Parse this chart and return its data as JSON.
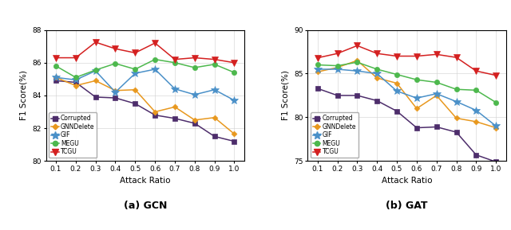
{
  "x": [
    0.1,
    0.2,
    0.3,
    0.4,
    0.5,
    0.6,
    0.7,
    0.8,
    0.9,
    1.0
  ],
  "gcn": {
    "Corrupted": [
      84.9,
      84.8,
      83.9,
      83.85,
      83.5,
      82.8,
      82.6,
      82.3,
      81.5,
      81.2
    ],
    "GNNDelete": [
      85.1,
      84.6,
      84.9,
      84.3,
      84.35,
      83.0,
      83.3,
      82.5,
      82.65,
      81.65
    ],
    "GIF": [
      85.1,
      84.95,
      85.5,
      84.2,
      85.35,
      85.6,
      84.4,
      84.05,
      84.35,
      83.7
    ],
    "MEGU": [
      85.8,
      85.1,
      85.55,
      85.95,
      85.6,
      86.2,
      86.0,
      85.7,
      85.9,
      85.4
    ],
    "TCGU": [
      86.3,
      86.3,
      87.25,
      86.85,
      86.6,
      87.2,
      86.2,
      86.3,
      86.2,
      86.0
    ]
  },
  "gat": {
    "Corrupted": [
      83.3,
      82.5,
      82.5,
      81.9,
      80.7,
      78.8,
      78.9,
      78.3,
      75.7,
      74.9
    ],
    "GNNDelete": [
      85.2,
      85.7,
      86.5,
      84.5,
      83.9,
      81.0,
      82.5,
      79.9,
      79.5,
      78.8
    ],
    "GIF": [
      85.5,
      85.5,
      85.3,
      85.0,
      83.0,
      82.2,
      82.7,
      81.8,
      80.8,
      79.0
    ],
    "MEGU": [
      86.0,
      85.9,
      86.3,
      85.5,
      84.9,
      84.3,
      84.0,
      83.2,
      83.1,
      81.7
    ],
    "TCGU": [
      86.8,
      87.3,
      88.2,
      87.3,
      87.0,
      87.0,
      87.2,
      86.85,
      85.3,
      84.8
    ]
  },
  "colors": {
    "Corrupted": "#4d2d6b",
    "GNNDelete": "#e8981e",
    "GIF": "#4a90c8",
    "MEGU": "#4db84d",
    "TCGU": "#d42020"
  },
  "markers": {
    "Corrupted": "s",
    "GNNDelete": "D",
    "GIF": "*",
    "MEGU": "o",
    "TCGU": "v"
  },
  "marker_sizes": {
    "Corrupted": 4,
    "GNNDelete": 3.5,
    "GIF": 7,
    "MEGU": 4.5,
    "TCGU": 5.5
  },
  "gcn_ylim": [
    80,
    88
  ],
  "gat_ylim": [
    75,
    90
  ],
  "gcn_yticks": [
    80,
    82,
    84,
    86,
    88
  ],
  "gat_yticks": [
    75,
    80,
    85,
    90
  ],
  "xlabel": "Attack Ratio",
  "ylabel": "F1 Score(%)",
  "title_gcn": "(a) GCN",
  "title_gat": "(b) GAT"
}
